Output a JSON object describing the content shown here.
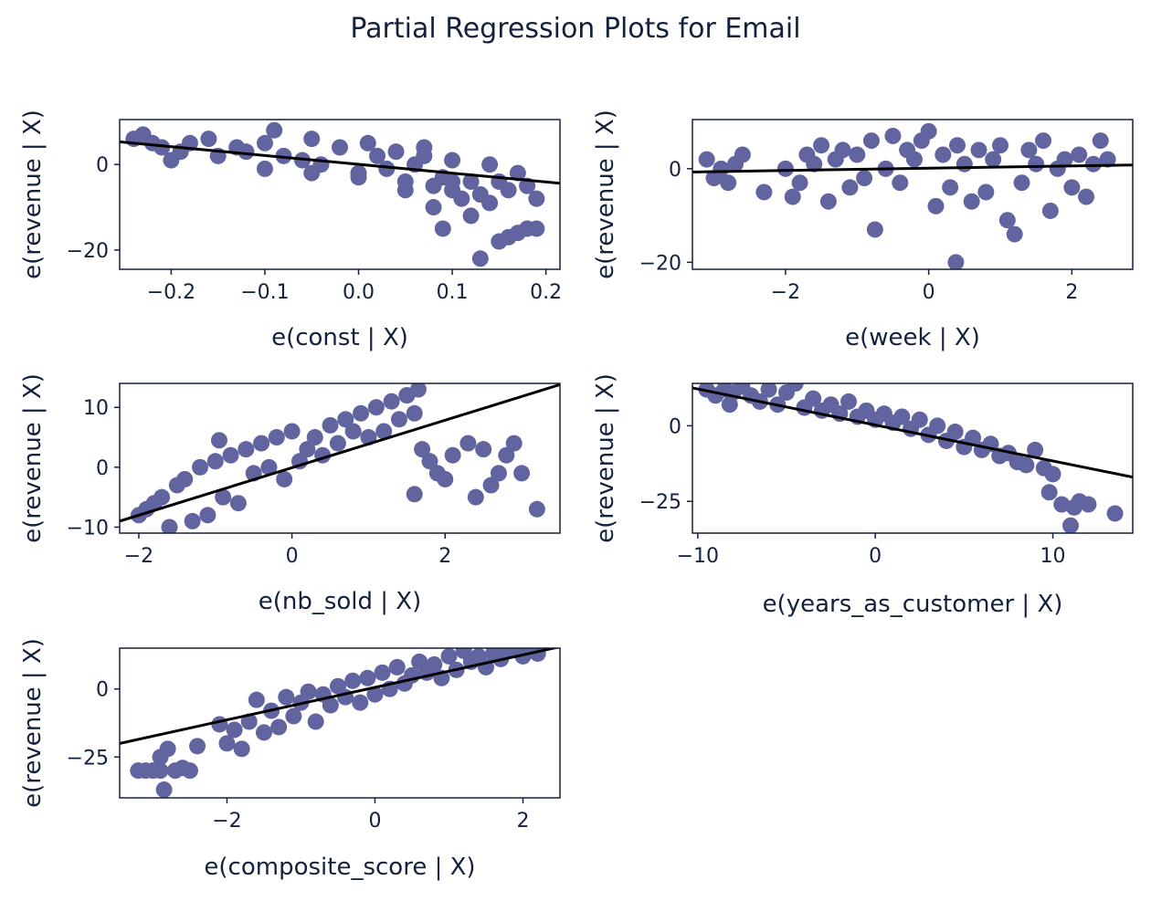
{
  "title": "Partial Regression Plots for Email",
  "colors": {
    "points": "#6264a0",
    "fit": "#000000",
    "axes": "#14213d"
  },
  "chart_data": [
    {
      "type": "scatter",
      "xlabel": "e(const | X)",
      "ylabel": "e(revenue | X)",
      "xlim": [
        -0.255,
        0.215
      ],
      "ylim": [
        -24.5,
        10.5
      ],
      "xticks": [
        -0.2,
        -0.1,
        0.0,
        0.1,
        0.2
      ],
      "xtick_labels": [
        "−0.2",
        "−0.1",
        "0.0",
        "0.1",
        "0.2"
      ],
      "yticks": [
        -20,
        0
      ],
      "ytick_labels": [
        "−20",
        "0"
      ],
      "fit_line": {
        "x": [
          -0.255,
          0.215
        ],
        "y": [
          5.3,
          -4.4
        ]
      },
      "points": {
        "x": [
          -0.24,
          -0.23,
          -0.22,
          -0.21,
          -0.19,
          -0.18,
          -0.16,
          -0.15,
          -0.13,
          -0.12,
          -0.1,
          -0.09,
          -0.08,
          -0.06,
          -0.05,
          -0.04,
          -0.02,
          0.0,
          0.01,
          0.02,
          0.03,
          0.04,
          0.05,
          0.06,
          0.07,
          0.08,
          0.09,
          0.1,
          0.11,
          0.12,
          0.13,
          0.14,
          0.15,
          0.16,
          0.17,
          0.18,
          0.19,
          -0.2,
          -0.1,
          0.0,
          0.1,
          0.05,
          -0.05,
          0.08,
          0.12,
          0.09,
          0.13,
          0.15,
          0.17,
          0.19,
          0.14,
          0.16,
          0.18,
          0.1,
          0.07
        ],
        "y": [
          6,
          7,
          5,
          4,
          3,
          5,
          6,
          2,
          4,
          3,
          5,
          8,
          2,
          1,
          6,
          0,
          4,
          -2,
          5,
          2,
          -1,
          3,
          -4,
          0,
          2,
          -5,
          -3,
          -6,
          -8,
          -12,
          -22,
          -9,
          -18,
          -17,
          -16,
          -15,
          -15,
          1,
          -1,
          -3,
          -4,
          -6,
          -2,
          -10,
          -4,
          -15,
          -7,
          -4,
          -2,
          -8,
          0,
          -6,
          -5,
          1,
          4
        ]
      }
    },
    {
      "type": "scatter",
      "xlabel": "e(week | X)",
      "ylabel": "e(revenue | X)",
      "xlim": [
        -3.3,
        2.85
      ],
      "ylim": [
        -21.5,
        10.5
      ],
      "xticks": [
        -2,
        0,
        2
      ],
      "xtick_labels": [
        "−2",
        "0",
        "2"
      ],
      "yticks": [
        -20,
        0
      ],
      "ytick_labels": [
        "−20",
        "0"
      ],
      "fit_line": {
        "x": [
          -3.3,
          2.85
        ],
        "y": [
          -0.7,
          0.8
        ]
      },
      "points": {
        "x": [
          -3.1,
          -3.0,
          -2.9,
          -2.8,
          -2.7,
          -2.6,
          -2.3,
          -2.0,
          -1.9,
          -1.8,
          -1.7,
          -1.6,
          -1.5,
          -1.4,
          -1.3,
          -1.2,
          -1.1,
          -1.0,
          -0.9,
          -0.8,
          -0.75,
          -0.6,
          -0.5,
          -0.4,
          -0.3,
          -0.2,
          -0.1,
          0.0,
          0.1,
          0.2,
          0.3,
          0.4,
          0.5,
          0.6,
          0.7,
          0.8,
          0.9,
          1.0,
          1.1,
          1.2,
          1.3,
          1.4,
          1.5,
          1.6,
          1.7,
          1.8,
          1.9,
          2.0,
          2.1,
          2.2,
          2.3,
          2.4,
          2.5,
          0.38
        ],
        "y": [
          2,
          -2,
          0,
          -3,
          1,
          3,
          -5,
          0,
          -6,
          -3,
          3,
          1,
          5,
          -7,
          2,
          4,
          -4,
          3,
          -2,
          6,
          -13,
          0,
          7,
          -3,
          4,
          2,
          6,
          8,
          -8,
          3,
          -4,
          5,
          1,
          -7,
          4,
          -5,
          2,
          5,
          -11,
          -14,
          -3,
          4,
          1,
          6,
          -9,
          0,
          2,
          -4,
          3,
          -6,
          1,
          6,
          2,
          -20
        ]
      }
    },
    {
      "type": "scatter",
      "xlabel": "e(nb_sold | X)",
      "ylabel": "e(revenue | X)",
      "xlim": [
        -2.25,
        3.5
      ],
      "ylim": [
        -11,
        14
      ],
      "xticks": [
        -2,
        0,
        2
      ],
      "xtick_labels": [
        "−2",
        "0",
        "2"
      ],
      "yticks": [
        -10,
        0,
        10
      ],
      "ytick_labels": [
        "−10",
        "0",
        "10"
      ],
      "fit_line": {
        "x": [
          -2.25,
          3.5
        ],
        "y": [
          -9,
          13.8
        ]
      },
      "points": {
        "x": [
          -2.0,
          -1.9,
          -1.8,
          -1.7,
          -1.6,
          -1.5,
          -1.4,
          -1.3,
          -1.2,
          -1.1,
          -1.0,
          -0.9,
          -0.8,
          -0.7,
          -0.6,
          -0.5,
          -0.4,
          -0.3,
          -0.2,
          -0.1,
          0.0,
          0.1,
          0.2,
          0.3,
          0.4,
          0.5,
          0.6,
          0.7,
          0.8,
          0.9,
          1.0,
          1.1,
          1.2,
          1.3,
          1.4,
          1.5,
          1.6,
          1.7,
          1.8,
          1.9,
          2.0,
          2.1,
          2.3,
          2.4,
          2.5,
          2.6,
          2.7,
          2.8,
          2.9,
          3.0,
          3.2,
          -0.95,
          1.5,
          1.6,
          1.65
        ],
        "y": [
          -8,
          -7,
          -6,
          -5,
          -10,
          -3,
          -2,
          -9,
          0,
          -8,
          1,
          -5,
          2,
          -6,
          3,
          -1,
          4,
          0,
          5,
          -2,
          6,
          1,
          3,
          5,
          2,
          7,
          4,
          8,
          6,
          9,
          5,
          10,
          6,
          11,
          8,
          12,
          9,
          3,
          1,
          -1,
          -2,
          2,
          4,
          -5,
          3,
          -3,
          -1,
          2,
          4,
          -1,
          -7,
          4.5,
          12,
          -4.5,
          13
        ]
      }
    },
    {
      "type": "scatter",
      "xlabel": "e(years_as_customer | X)",
      "ylabel": "e(revenue | X)",
      "xlim": [
        -10.3,
        14.5
      ],
      "ylim": [
        -35.5,
        14
      ],
      "xticks": [
        -10,
        0,
        10
      ],
      "xtick_labels": [
        "−10",
        "0",
        "10"
      ],
      "yticks": [
        -25,
        0
      ],
      "ytick_labels": [
        "−25",
        "0"
      ],
      "fit_line": {
        "x": [
          -10.3,
          14.5
        ],
        "y": [
          12.5,
          -17
        ]
      },
      "points": {
        "x": [
          -9.5,
          -9,
          -8.5,
          -8,
          -7.5,
          -7,
          -6.5,
          -6,
          -5.5,
          -5,
          -4.5,
          -4,
          -3.5,
          -3,
          -2.5,
          -2,
          -1.5,
          -1,
          -0.5,
          0,
          0.5,
          1,
          1.5,
          2,
          2.5,
          3,
          3.5,
          4,
          4.5,
          5,
          5.5,
          6,
          6.5,
          7,
          7.5,
          8,
          8.5,
          9,
          9.5,
          10,
          10.5,
          11,
          11.5,
          12,
          13.5,
          11.2,
          9.8,
          -8.2
        ],
        "y": [
          12,
          10,
          12,
          11,
          13,
          10,
          8,
          12,
          7,
          11,
          14,
          6,
          9,
          5,
          7,
          4,
          8,
          3,
          5,
          2,
          4,
          1,
          3,
          -1,
          2,
          -3,
          0,
          -5,
          -2,
          -7,
          -4,
          -8,
          -6,
          -10,
          -9,
          -12,
          -13,
          -8,
          -14,
          -16,
          -26,
          -33,
          -25,
          -26,
          -29,
          -27,
          -22,
          7
        ]
      }
    },
    {
      "type": "scatter",
      "xlabel": "e(composite_score | X)",
      "ylabel": "e(revenue | X)",
      "xlim": [
        -3.45,
        2.5
      ],
      "ylim": [
        -40,
        15
      ],
      "xticks": [
        -2,
        0,
        2
      ],
      "xtick_labels": [
        "−2",
        "0",
        "2"
      ],
      "yticks": [
        -25,
        0
      ],
      "ytick_labels": [
        "−25",
        "0"
      ],
      "fit_line": {
        "x": [
          -3.45,
          2.5
        ],
        "y": [
          -20,
          15.5
        ]
      },
      "points": {
        "x": [
          -3.2,
          -3.1,
          -3.0,
          -2.9,
          -2.85,
          -2.8,
          -2.7,
          -2.6,
          -2.5,
          -2.4,
          -2.1,
          -2.0,
          -1.9,
          -1.8,
          -1.7,
          -1.6,
          -1.5,
          -1.4,
          -1.3,
          -1.2,
          -1.1,
          -1.0,
          -0.9,
          -0.8,
          -0.7,
          -0.6,
          -0.5,
          -0.4,
          -0.3,
          -0.2,
          -0.1,
          0.0,
          0.1,
          0.2,
          0.3,
          0.4,
          0.5,
          0.6,
          0.7,
          0.8,
          0.9,
          1.0,
          1.1,
          1.2,
          1.3,
          1.4,
          1.5,
          1.6,
          1.7,
          1.8,
          1.9,
          2.0,
          2.1,
          2.2,
          -2.9
        ],
        "y": [
          -30,
          -30,
          -30,
          -30,
          -37,
          -22,
          -30,
          -29,
          -30,
          -21,
          -13,
          -20,
          -15,
          -22,
          -12,
          -4,
          -16,
          -8,
          -14,
          -3,
          -10,
          -5,
          -1,
          -12,
          -2,
          -6,
          1,
          -3,
          3,
          -5,
          4,
          -2,
          6,
          0,
          8,
          2,
          5,
          10,
          6,
          9,
          4,
          12,
          7,
          14,
          10,
          12,
          8,
          13,
          11,
          14,
          15,
          12,
          14,
          13,
          -25
        ]
      }
    }
  ]
}
